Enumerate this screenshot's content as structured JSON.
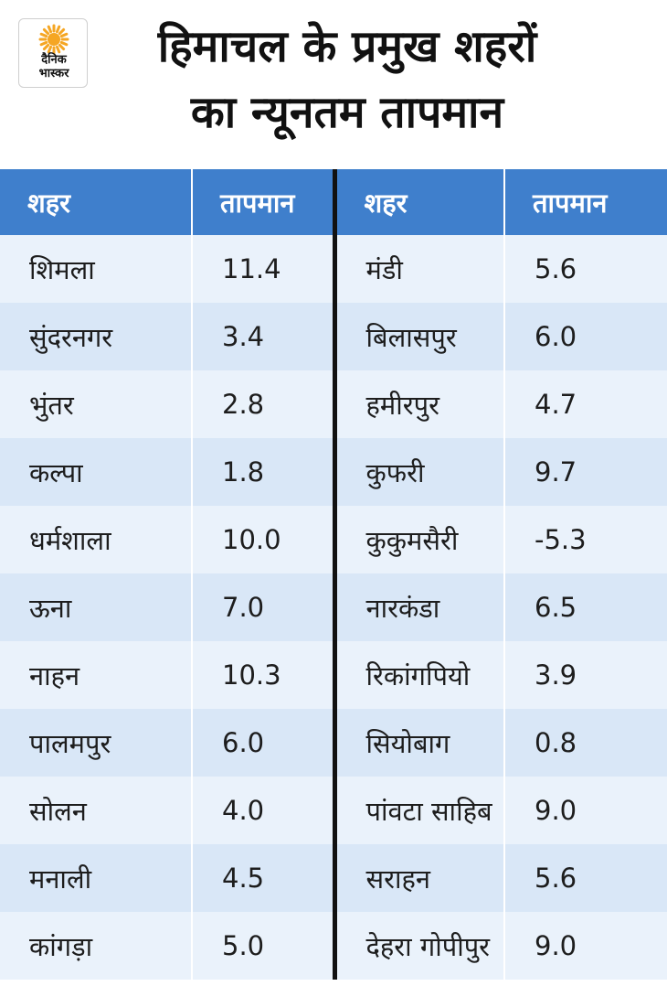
{
  "logo": {
    "line1": "दैनिक",
    "line2": "भास्कर",
    "sun_color": "#f5a623"
  },
  "title": {
    "line1": "हिमाचल के प्रमुख शहरों",
    "line2": "का न्यूनतम तापमान"
  },
  "colors": {
    "header_bg": "#3f7fcc",
    "row_light": "#eaf2fb",
    "row_dark": "#d9e7f7",
    "divider": "#111111"
  },
  "table": {
    "headers": {
      "city_left": "शहर",
      "temp_left": "तापमान",
      "city_right": "शहर",
      "temp_right": "तापमान"
    },
    "rows": [
      {
        "city_left": "शिमला",
        "temp_left": "11.4",
        "city_right": "मंडी",
        "temp_right": "5.6"
      },
      {
        "city_left": "सुंदरनगर",
        "temp_left": "3.4",
        "city_right": "बिलासपुर",
        "temp_right": "6.0"
      },
      {
        "city_left": "भुंतर",
        "temp_left": "2.8",
        "city_right": "हमीरपुर",
        "temp_right": "4.7"
      },
      {
        "city_left": "कल्पा",
        "temp_left": "1.8",
        "city_right": "कुफरी",
        "temp_right": "9.7"
      },
      {
        "city_left": "धर्मशाला",
        "temp_left": "10.0",
        "city_right": "कुकुमसैरी",
        "temp_right": "-5.3"
      },
      {
        "city_left": "ऊना",
        "temp_left": "7.0",
        "city_right": "नारकंडा",
        "temp_right": "6.5"
      },
      {
        "city_left": "नाहन",
        "temp_left": "10.3",
        "city_right": "रिकांगपियो",
        "temp_right": "3.9"
      },
      {
        "city_left": "पालमपुर",
        "temp_left": "6.0",
        "city_right": "सियोबाग",
        "temp_right": "0.8"
      },
      {
        "city_left": "सोलन",
        "temp_left": "4.0",
        "city_right": "पांवटा साहिब",
        "temp_right": "9.0"
      },
      {
        "city_left": "मनाली",
        "temp_left": "4.5",
        "city_right": "सराहन",
        "temp_right": "5.6"
      },
      {
        "city_left": "कांगड़ा",
        "temp_left": "5.0",
        "city_right": "देहरा गोपीपुर",
        "temp_right": "9.0"
      }
    ]
  }
}
